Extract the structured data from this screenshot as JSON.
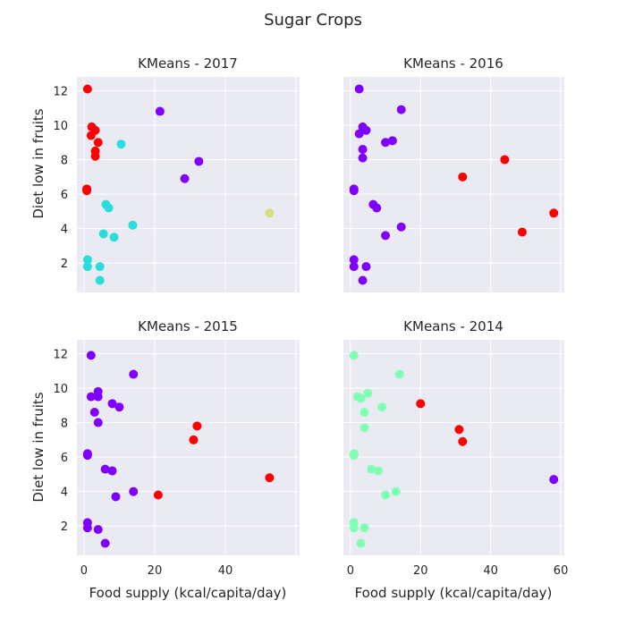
{
  "chart_data": {
    "type": "scatter",
    "title": "Sugar Crops",
    "xlabel": "Food supply (kcal/capita/day)",
    "ylabel": "Diet low in fruits",
    "xlim": [
      -2,
      61
    ],
    "ylim": [
      0.3,
      12.8
    ],
    "xticks": [
      0,
      20,
      40,
      60
    ],
    "yticks": [
      2,
      4,
      6,
      8,
      10,
      12
    ],
    "grid": true,
    "panels": [
      {
        "title": "KMeans - 2017",
        "points": [
          {
            "x": 1.0,
            "y": 12.1,
            "cluster": 0,
            "color": "#ff0000"
          },
          {
            "x": 2.2,
            "y": 9.9,
            "cluster": 0,
            "color": "#ff0000"
          },
          {
            "x": 3.2,
            "y": 9.7,
            "cluster": 0,
            "color": "#ff0000"
          },
          {
            "x": 2.0,
            "y": 9.4,
            "cluster": 0,
            "color": "#ff0000"
          },
          {
            "x": 4.0,
            "y": 9.0,
            "cluster": 0,
            "color": "#ff0000"
          },
          {
            "x": 3.2,
            "y": 8.5,
            "cluster": 0,
            "color": "#ff0000"
          },
          {
            "x": 3.2,
            "y": 8.2,
            "cluster": 0,
            "color": "#ff0000"
          },
          {
            "x": 0.8,
            "y": 6.3,
            "cluster": 0,
            "color": "#ff0000"
          },
          {
            "x": 0.8,
            "y": 6.2,
            "cluster": 0,
            "color": "#ff0000"
          },
          {
            "x": 21.5,
            "y": 10.8,
            "cluster": 1,
            "color": "#8000ff"
          },
          {
            "x": 32.5,
            "y": 7.9,
            "cluster": 1,
            "color": "#8000ff"
          },
          {
            "x": 28.5,
            "y": 6.9,
            "cluster": 1,
            "color": "#8000ff"
          },
          {
            "x": 10.5,
            "y": 8.9,
            "cluster": 2,
            "color": "#2adddd"
          },
          {
            "x": 6.2,
            "y": 5.4,
            "cluster": 2,
            "color": "#2adddd"
          },
          {
            "x": 7.0,
            "y": 5.2,
            "cluster": 2,
            "color": "#2adddd"
          },
          {
            "x": 13.8,
            "y": 4.2,
            "cluster": 2,
            "color": "#2adddd"
          },
          {
            "x": 5.5,
            "y": 3.7,
            "cluster": 2,
            "color": "#2adddd"
          },
          {
            "x": 8.5,
            "y": 3.5,
            "cluster": 2,
            "color": "#2adddd"
          },
          {
            "x": 1.0,
            "y": 2.2,
            "cluster": 2,
            "color": "#2adddd"
          },
          {
            "x": 1.0,
            "y": 1.8,
            "cluster": 2,
            "color": "#2adddd"
          },
          {
            "x": 4.5,
            "y": 1.8,
            "cluster": 2,
            "color": "#2adddd"
          },
          {
            "x": 4.5,
            "y": 1.0,
            "cluster": 2,
            "color": "#2adddd"
          },
          {
            "x": 52.5,
            "y": 4.9,
            "cluster": 3,
            "color": "#d4dd80"
          }
        ]
      },
      {
        "title": "KMeans - 2016",
        "points": [
          {
            "x": 2.5,
            "y": 12.1,
            "cluster": 0,
            "color": "#8000ff"
          },
          {
            "x": 14.5,
            "y": 10.9,
            "cluster": 0,
            "color": "#8000ff"
          },
          {
            "x": 3.5,
            "y": 9.9,
            "cluster": 0,
            "color": "#8000ff"
          },
          {
            "x": 4.5,
            "y": 9.7,
            "cluster": 0,
            "color": "#8000ff"
          },
          {
            "x": 2.5,
            "y": 9.5,
            "cluster": 0,
            "color": "#8000ff"
          },
          {
            "x": 10.0,
            "y": 9.0,
            "cluster": 0,
            "color": "#8000ff"
          },
          {
            "x": 12.0,
            "y": 9.1,
            "cluster": 0,
            "color": "#8000ff"
          },
          {
            "x": 3.5,
            "y": 8.6,
            "cluster": 0,
            "color": "#8000ff"
          },
          {
            "x": 3.5,
            "y": 8.1,
            "cluster": 0,
            "color": "#8000ff"
          },
          {
            "x": 1.0,
            "y": 6.3,
            "cluster": 0,
            "color": "#8000ff"
          },
          {
            "x": 1.0,
            "y": 6.2,
            "cluster": 0,
            "color": "#8000ff"
          },
          {
            "x": 6.5,
            "y": 5.4,
            "cluster": 0,
            "color": "#8000ff"
          },
          {
            "x": 7.5,
            "y": 5.2,
            "cluster": 0,
            "color": "#8000ff"
          },
          {
            "x": 14.5,
            "y": 4.1,
            "cluster": 0,
            "color": "#8000ff"
          },
          {
            "x": 10.0,
            "y": 3.6,
            "cluster": 0,
            "color": "#8000ff"
          },
          {
            "x": 1.0,
            "y": 2.2,
            "cluster": 0,
            "color": "#8000ff"
          },
          {
            "x": 1.0,
            "y": 1.8,
            "cluster": 0,
            "color": "#8000ff"
          },
          {
            "x": 4.5,
            "y": 1.8,
            "cluster": 0,
            "color": "#8000ff"
          },
          {
            "x": 3.5,
            "y": 1.0,
            "cluster": 0,
            "color": "#8000ff"
          },
          {
            "x": 44.0,
            "y": 8.0,
            "cluster": 1,
            "color": "#ff0000"
          },
          {
            "x": 32.0,
            "y": 7.0,
            "cluster": 1,
            "color": "#ff0000"
          },
          {
            "x": 58.0,
            "y": 4.9,
            "cluster": 1,
            "color": "#ff0000"
          },
          {
            "x": 49.0,
            "y": 3.8,
            "cluster": 1,
            "color": "#ff0000"
          }
        ]
      },
      {
        "title": "KMeans - 2015",
        "points": [
          {
            "x": 2.0,
            "y": 11.9,
            "cluster": 0,
            "color": "#8000ff"
          },
          {
            "x": 14.0,
            "y": 10.8,
            "cluster": 0,
            "color": "#8000ff"
          },
          {
            "x": 4.0,
            "y": 9.8,
            "cluster": 0,
            "color": "#8000ff"
          },
          {
            "x": 2.0,
            "y": 9.5,
            "cluster": 0,
            "color": "#8000ff"
          },
          {
            "x": 4.0,
            "y": 9.5,
            "cluster": 0,
            "color": "#8000ff"
          },
          {
            "x": 8.0,
            "y": 9.1,
            "cluster": 0,
            "color": "#8000ff"
          },
          {
            "x": 10.0,
            "y": 8.9,
            "cluster": 0,
            "color": "#8000ff"
          },
          {
            "x": 3.0,
            "y": 8.6,
            "cluster": 0,
            "color": "#8000ff"
          },
          {
            "x": 4.0,
            "y": 8.0,
            "cluster": 0,
            "color": "#8000ff"
          },
          {
            "x": 1.0,
            "y": 6.2,
            "cluster": 0,
            "color": "#8000ff"
          },
          {
            "x": 1.0,
            "y": 6.1,
            "cluster": 0,
            "color": "#8000ff"
          },
          {
            "x": 6.0,
            "y": 5.3,
            "cluster": 0,
            "color": "#8000ff"
          },
          {
            "x": 8.0,
            "y": 5.2,
            "cluster": 0,
            "color": "#8000ff"
          },
          {
            "x": 14.0,
            "y": 4.0,
            "cluster": 0,
            "color": "#8000ff"
          },
          {
            "x": 9.0,
            "y": 3.7,
            "cluster": 0,
            "color": "#8000ff"
          },
          {
            "x": 1.0,
            "y": 2.2,
            "cluster": 0,
            "color": "#8000ff"
          },
          {
            "x": 1.0,
            "y": 1.9,
            "cluster": 0,
            "color": "#8000ff"
          },
          {
            "x": 4.0,
            "y": 1.8,
            "cluster": 0,
            "color": "#8000ff"
          },
          {
            "x": 6.0,
            "y": 1.0,
            "cluster": 0,
            "color": "#8000ff"
          },
          {
            "x": 32.0,
            "y": 7.8,
            "cluster": 1,
            "color": "#ff0000"
          },
          {
            "x": 31.0,
            "y": 7.0,
            "cluster": 1,
            "color": "#ff0000"
          },
          {
            "x": 21.0,
            "y": 3.8,
            "cluster": 1,
            "color": "#ff0000"
          },
          {
            "x": 52.5,
            "y": 4.8,
            "cluster": 1,
            "color": "#ff0000"
          }
        ]
      },
      {
        "title": "KMeans - 2014",
        "points": [
          {
            "x": 1.0,
            "y": 11.9,
            "cluster": 0,
            "color": "#80ffb4"
          },
          {
            "x": 14.0,
            "y": 10.8,
            "cluster": 0,
            "color": "#80ffb4"
          },
          {
            "x": 5.0,
            "y": 9.7,
            "cluster": 0,
            "color": "#80ffb4"
          },
          {
            "x": 2.0,
            "y": 9.5,
            "cluster": 0,
            "color": "#80ffb4"
          },
          {
            "x": 3.0,
            "y": 9.4,
            "cluster": 0,
            "color": "#80ffb4"
          },
          {
            "x": 9.0,
            "y": 8.9,
            "cluster": 0,
            "color": "#80ffb4"
          },
          {
            "x": 4.0,
            "y": 8.6,
            "cluster": 0,
            "color": "#80ffb4"
          },
          {
            "x": 4.0,
            "y": 7.7,
            "cluster": 0,
            "color": "#80ffb4"
          },
          {
            "x": 1.0,
            "y": 6.2,
            "cluster": 0,
            "color": "#80ffb4"
          },
          {
            "x": 1.0,
            "y": 6.1,
            "cluster": 0,
            "color": "#80ffb4"
          },
          {
            "x": 6.0,
            "y": 5.3,
            "cluster": 0,
            "color": "#80ffb4"
          },
          {
            "x": 8.0,
            "y": 5.2,
            "cluster": 0,
            "color": "#80ffb4"
          },
          {
            "x": 13.0,
            "y": 4.0,
            "cluster": 0,
            "color": "#80ffb4"
          },
          {
            "x": 10.0,
            "y": 3.8,
            "cluster": 0,
            "color": "#80ffb4"
          },
          {
            "x": 1.0,
            "y": 2.2,
            "cluster": 0,
            "color": "#80ffb4"
          },
          {
            "x": 1.0,
            "y": 1.9,
            "cluster": 0,
            "color": "#80ffb4"
          },
          {
            "x": 4.0,
            "y": 1.9,
            "cluster": 0,
            "color": "#80ffb4"
          },
          {
            "x": 3.0,
            "y": 1.0,
            "cluster": 0,
            "color": "#80ffb4"
          },
          {
            "x": 20.0,
            "y": 9.1,
            "cluster": 1,
            "color": "#ff0000"
          },
          {
            "x": 31.0,
            "y": 7.6,
            "cluster": 1,
            "color": "#ff0000"
          },
          {
            "x": 32.0,
            "y": 6.9,
            "cluster": 1,
            "color": "#ff0000"
          },
          {
            "x": 58.0,
            "y": 4.7,
            "cluster": 2,
            "color": "#8000ff"
          }
        ]
      }
    ]
  }
}
